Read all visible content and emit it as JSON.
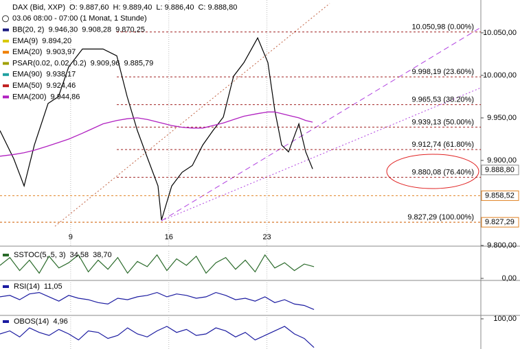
{
  "chart_data": [
    {
      "type": "line",
      "title": "DAX (Bid, XXP)",
      "subtitle": "03.06 08:00 - 07:00 (1 Monat, 1 Stunde)",
      "xlim": [
        0,
        24.5
      ],
      "xticks": [
        {
          "value": 3.6,
          "label": "9"
        },
        {
          "value": 8.6,
          "label": "16"
        },
        {
          "value": 13.6,
          "label": "23"
        }
      ],
      "ylim": [
        9800,
        10087
      ],
      "yticks": [
        {
          "value": 9800,
          "label": "9.800,00"
        },
        {
          "value": 9900,
          "label": "9.900,00"
        },
        {
          "value": 9950,
          "label": "9.950,00"
        },
        {
          "value": 10000,
          "label": "10.000,00"
        },
        {
          "value": 10050,
          "label": "10.050,00"
        }
      ],
      "x": [
        0,
        0.7,
        1.23,
        1.75,
        2.45,
        2.98,
        3.5,
        4.2,
        5.25,
        5.95,
        6.48,
        7,
        7.53,
        8.05,
        8.23,
        8.75,
        9.28,
        9.8,
        10.33,
        10.85,
        11.38,
        11.9,
        12.43,
        13.13,
        13.65,
        14,
        14.35,
        14.7,
        15.23,
        15.58,
        15.93
      ],
      "series": [
        {
          "name": "DAX (Bid, XXP)",
          "color": "#000000",
          "reading_color": "#2a8a2a",
          "readings": [
            "O: 9.887,60",
            "H: 9.889,40",
            "L: 9.886,40",
            "C: 9.888,80"
          ],
          "values": [
            9935,
            9902,
            9870,
            9918,
            9967,
            9975,
            10010,
            10031,
            10031,
            10023,
            9975,
            9935,
            9902,
            9870,
            9830,
            9870,
            9886,
            9894,
            9918,
            9935,
            9951,
            9999,
            10015,
            10044,
            10015,
            9959,
            9918,
            9910,
            9943,
            9910,
            9890
          ]
        },
        {
          "name": "BB(20, 2)",
          "color": "#1a1a80",
          "readings": [
            "9.946,30",
            "9.908,28",
            "9.870,25"
          ]
        },
        {
          "name": "EMA(9)",
          "color": "#d8c800",
          "readings": [
            "9.894,20"
          ]
        },
        {
          "name": "EMA(20)",
          "color": "#f08000",
          "readings": [
            "9.903,97"
          ]
        },
        {
          "name": "PSAR(0.02, 0.02, 0.2)",
          "color": "#a0a000",
          "readings": [
            "9.909,96",
            "9.885,79"
          ]
        },
        {
          "name": "EMA(90)",
          "color": "#20a0a0",
          "readings": [
            "9.938,17"
          ]
        },
        {
          "name": "EMA(50)",
          "color": "#c02020",
          "readings": [
            "9.924,46"
          ]
        },
        {
          "name": "EMA(200)",
          "color": "#b020c0",
          "readings": [
            "9.944,86"
          ],
          "values": [
            9905,
            9907,
            9909,
            9912,
            9917,
            9921,
            9925,
            9932,
            9943,
            9947,
            9949,
            9950,
            9948,
            9945,
            9944,
            9941,
            9939,
            9938,
            9938,
            9941,
            9944,
            9948,
            9952,
            9955,
            9957,
            9957,
            9955,
            9953,
            9950,
            9947,
            9945
          ]
        }
      ],
      "fib_levels": [
        {
          "value": 10050.98,
          "label": "10.050,98 (0.00%)"
        },
        {
          "value": 9998.19,
          "label": "9.998,19 (23.60%)"
        },
        {
          "value": 9965.53,
          "label": "9.965,53 (38.20%)"
        },
        {
          "value": 9939.13,
          "label": "9.939,13 (50.00%)"
        },
        {
          "value": 9912.74,
          "label": "9.912,74 (61.80%)"
        },
        {
          "value": 9880.08,
          "label": "9.880,08 (76.40%)"
        },
        {
          "value": 9827.29,
          "label": "9.827,29 (100.00%)"
        }
      ],
      "price_markers": [
        {
          "value": 9888.8,
          "label": "9.888,80"
        },
        {
          "value": 9858.52,
          "label": "9.858,52"
        },
        {
          "value": 9827.29,
          "label": "9.827,29"
        }
      ]
    },
    {
      "type": "line",
      "title": "SSTOC(5, 5, 3)",
      "readings": [
        "34,58",
        "38,70"
      ],
      "color": "#2a6a2a",
      "xlim": [
        0,
        24.5
      ],
      "ylim": [
        0,
        100
      ],
      "yticks": [
        {
          "value": 0,
          "label": "0,00"
        }
      ],
      "x": [
        0,
        0.5,
        1,
        1.5,
        2,
        2.5,
        3,
        3.5,
        4,
        4.5,
        5,
        5.5,
        6,
        6.5,
        7,
        7.5,
        8,
        8.5,
        9,
        9.5,
        10,
        10.5,
        11,
        11.5,
        12,
        12.5,
        13,
        13.5,
        14,
        14.5,
        15,
        15.5,
        16
      ],
      "values": [
        50,
        80,
        30,
        70,
        20,
        85,
        40,
        60,
        90,
        25,
        70,
        35,
        80,
        20,
        65,
        45,
        90,
        30,
        75,
        50,
        85,
        20,
        60,
        80,
        35,
        70,
        25,
        90,
        40,
        60,
        30,
        55,
        45
      ]
    },
    {
      "type": "line",
      "title": "RSI(14)",
      "readings": [
        "11,05"
      ],
      "color": "#1a1aa0",
      "xlim": [
        0,
        24.5
      ],
      "ylim": [
        0,
        100
      ],
      "yticks": [],
      "x": [
        0,
        0.5,
        1,
        1.5,
        2,
        2.5,
        3,
        3.5,
        4,
        4.5,
        5,
        5.5,
        6,
        6.5,
        7,
        7.5,
        8,
        8.5,
        9,
        9.5,
        10,
        10.5,
        11,
        11.5,
        12,
        12.5,
        13,
        13.5,
        14,
        14.5,
        15,
        15.5,
        16
      ],
      "values": [
        55,
        60,
        45,
        65,
        70,
        55,
        40,
        60,
        50,
        45,
        35,
        30,
        50,
        45,
        55,
        60,
        70,
        55,
        65,
        60,
        50,
        55,
        70,
        60,
        45,
        50,
        40,
        55,
        35,
        45,
        30,
        25,
        11
      ]
    },
    {
      "type": "line",
      "title": "OBOS(14)",
      "readings": [
        "4,96"
      ],
      "color": "#1a1aa0",
      "xlim": [
        0,
        24.5
      ],
      "ylim": [
        0,
        100
      ],
      "yticks": [
        {
          "value": 100,
          "label": "100,00"
        }
      ],
      "x": [
        0,
        0.5,
        1,
        1.5,
        2,
        2.5,
        3,
        3.5,
        4,
        4.5,
        5,
        5.5,
        6,
        6.5,
        7,
        7.5,
        8,
        8.5,
        9,
        9.5,
        10,
        10.5,
        11,
        11.5,
        12,
        12.5,
        13,
        13.5,
        14,
        14.5,
        15,
        15.5,
        16
      ],
      "values": [
        50,
        60,
        40,
        70,
        55,
        45,
        65,
        50,
        30,
        60,
        55,
        35,
        45,
        70,
        50,
        40,
        60,
        75,
        55,
        65,
        45,
        50,
        70,
        60,
        40,
        55,
        30,
        45,
        60,
        75,
        50,
        35,
        5
      ]
    }
  ]
}
